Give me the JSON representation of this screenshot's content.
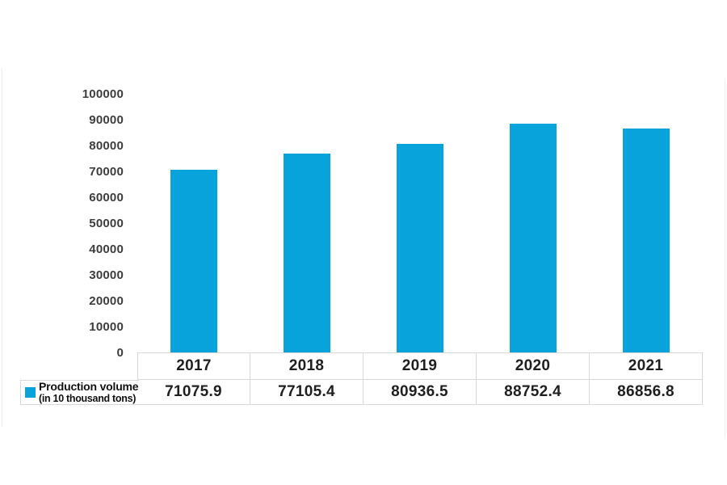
{
  "chart_data": {
    "type": "bar",
    "categories": [
      "2017",
      "2018",
      "2019",
      "2020",
      "2021"
    ],
    "values": [
      71075.9,
      77105.4,
      80936.5,
      88752.4,
      86856.8
    ],
    "series_name": "Production volume (in 10 thousand tons)",
    "title": "",
    "xlabel": "",
    "ylabel": "",
    "ylim": [
      0,
      100000
    ],
    "ytick_step": 10000,
    "yticks": [
      "100000",
      "90000",
      "80000",
      "70000",
      "60000",
      "50000",
      "40000",
      "30000",
      "20000",
      "10000",
      "0"
    ],
    "grid": false,
    "legend_position": "bottom-left-table",
    "bar_color": "#09a3dc"
  },
  "legend": {
    "label": "Production volume",
    "sublabel": "(in 10 thousand tons)",
    "swatch_color": "#09a3dc"
  },
  "table": {
    "headers": [
      "2017",
      "2018",
      "2019",
      "2020",
      "2021"
    ],
    "cells": [
      "71075.9",
      "77105.4",
      "80936.5",
      "88752.4",
      "86856.8"
    ]
  }
}
